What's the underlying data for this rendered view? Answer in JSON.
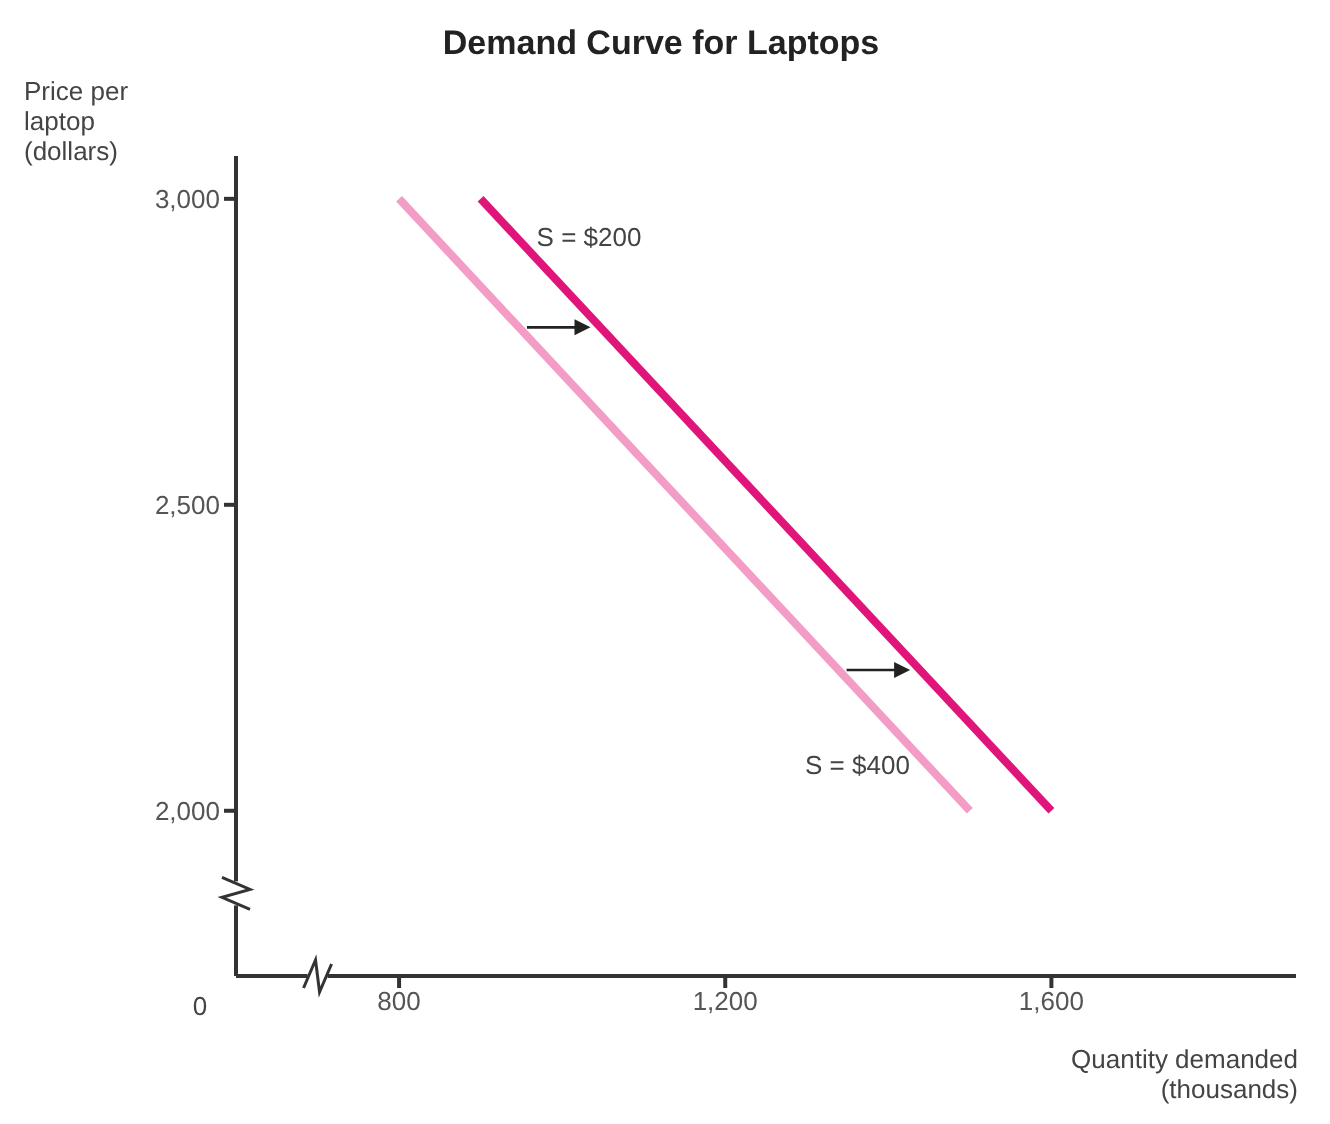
{
  "chart_data": {
    "type": "line",
    "title": "Demand Curve for Laptops",
    "xlabel": "Quantity demanded (thousands)",
    "ylabel": "Price per laptop (dollars)",
    "series": [
      {
        "color": "#e0157a",
        "x": [
          900,
          1600
        ],
        "values": [
          3000,
          2000
        ]
      },
      {
        "color": "#f29cc6",
        "x": [
          800,
          1500
        ],
        "values": [
          3000,
          2000
        ]
      }
    ],
    "annotations": [
      "S = $200",
      "S = $400",
      "0"
    ],
    "xlim": [
      600,
      1900
    ],
    "xticks": [
      {
        "value": 800,
        "label": "800"
      },
      {
        "value": 1200,
        "label": "1,200"
      },
      {
        "value": 1600,
        "label": "1,600"
      }
    ],
    "ylim": [
      1730,
      3070
    ],
    "yticks": [
      {
        "value": 2000,
        "label": "2,000"
      },
      {
        "value": 2500,
        "label": "2,500"
      },
      {
        "value": 3000,
        "label": "3,000"
      }
    ],
    "grid": false,
    "marker": "none",
    "line_style": "solid"
  }
}
